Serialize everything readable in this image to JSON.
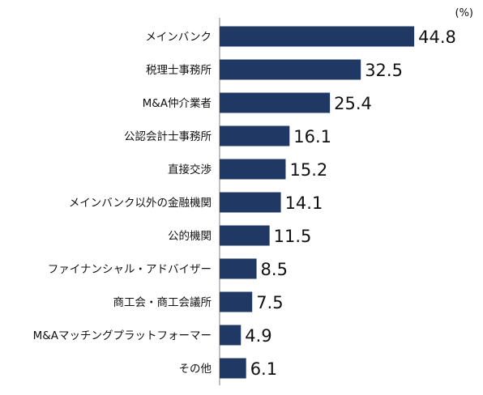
{
  "chart_data": {
    "type": "bar",
    "orientation": "horizontal",
    "unit": "(%)",
    "categories": [
      "メインバンク",
      "税理士事務所",
      "M&A仲介業者",
      "公認会計士事務所",
      "直接交渉",
      "メインバンク以外の金融機関",
      "公的機関",
      "ファイナンシャル・アドバイザー",
      "商工会・商工会議所",
      "M&Aマッチングプラットフォーマー",
      "その他"
    ],
    "values": [
      44.8,
      32.5,
      25.4,
      16.1,
      15.2,
      14.1,
      11.5,
      8.5,
      7.5,
      4.9,
      6.1
    ],
    "value_labels": [
      "44.8",
      "32.5",
      "25.4",
      "16.1",
      "15.2",
      "14.1",
      "11.5",
      "8.5",
      "7.5",
      "4.9",
      "6.1"
    ],
    "xlim": [
      0,
      50
    ],
    "grid": false,
    "legend": "none",
    "bar_color": "#1f3864"
  }
}
